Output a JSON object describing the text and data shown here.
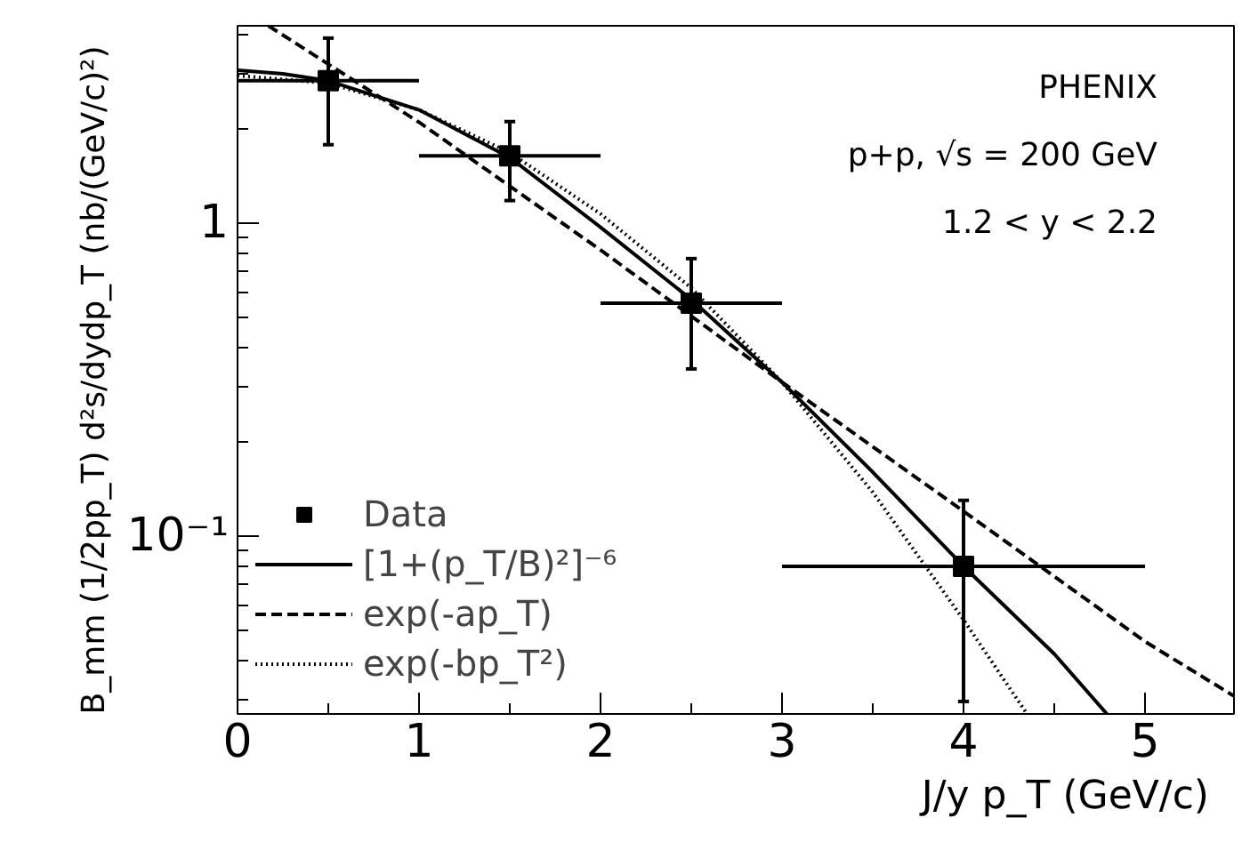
{
  "chart_data": {
    "type": "line",
    "xlabel": "J/y  p_T  (GeV/c)",
    "ylabel": "B_mm (1/2pp_T)  d²s/dydp_T  (nb/(GeV/c)²)",
    "annotations": [
      "PHENIX",
      "p+p, √s = 200 GeV",
      "1.2 < y < 2.2"
    ],
    "log": "y",
    "grid": false,
    "legend": "left",
    "xlim": [
      0,
      5.49
    ],
    "ylim": [
      0.027,
      4.27
    ],
    "xticks": [
      0,
      1,
      2,
      3,
      4,
      5,
      {
        "value": 0.5,
        "label": null
      },
      {
        "value": 1.5,
        "label": null
      },
      {
        "value": 2.5,
        "label": null
      },
      {
        "value": 3.5,
        "label": null
      },
      {
        "value": 4.5,
        "label": null
      }
    ],
    "yticks": [
      {
        "value": 1,
        "label": "1"
      },
      {
        "value": 0.1,
        "label": "10⁻¹"
      },
      {
        "value": 0.03,
        "label": null
      },
      {
        "value": 0.04,
        "label": null
      },
      {
        "value": 0.05,
        "label": null
      },
      {
        "value": 0.06,
        "label": null
      },
      {
        "value": 0.07,
        "label": null
      },
      {
        "value": 0.08,
        "label": null
      },
      {
        "value": 0.09,
        "label": null
      },
      {
        "value": 0.2,
        "label": null
      },
      {
        "value": 0.3,
        "label": null
      },
      {
        "value": 0.4,
        "label": null
      },
      {
        "value": 0.5,
        "label": null
      },
      {
        "value": 0.6,
        "label": null
      },
      {
        "value": 0.7,
        "label": null
      },
      {
        "value": 0.8,
        "label": null
      },
      {
        "value": 0.9,
        "label": null
      },
      {
        "value": 2,
        "label": null
      },
      {
        "value": 3,
        "label": null
      },
      {
        "value": 4,
        "label": null
      }
    ],
    "series": [
      {
        "name": "Data",
        "type": "scatter",
        "marker": "square",
        "color": "#000000",
        "x": [
          0.5,
          1.5,
          2.5,
          4
        ],
        "values": [
          2.85,
          1.64,
          0.555,
          0.08
        ],
        "errors": [
          [
            1.78,
            3.9
          ],
          [
            1.18,
            2.11
          ],
          [
            0.342,
            0.77
          ],
          [
            0.0296,
            0.13
          ]
        ],
        "xerrors": [
          [
            0,
            1
          ],
          [
            1,
            2
          ],
          [
            2,
            3
          ],
          [
            3,
            5
          ]
        ]
      },
      {
        "name": "[1+(p_T/B)²]⁻⁶",
        "line_style": "solid",
        "color": "#000000",
        "x": [
          0,
          0.25,
          0.5,
          1,
          1.5,
          2,
          2.5,
          3,
          3.5,
          4,
          4.5,
          4.79
        ],
        "values": [
          3.08,
          3.0,
          2.85,
          2.3,
          1.62,
          0.97,
          0.57,
          0.31,
          0.16,
          0.08,
          0.042,
          0.027
        ]
      },
      {
        "name": "exp(-ap_T)",
        "line_style": "dashed",
        "color": "#000000",
        "x": [
          0.17,
          1,
          2,
          3,
          4,
          5,
          5.49
        ],
        "values": [
          4.27,
          2.1,
          0.82,
          0.31,
          0.12,
          0.046,
          0.0308
        ]
      },
      {
        "name": "exp(-bp_T²)",
        "line_style": "dotted",
        "color": "#000000",
        "x": [
          0,
          0.5,
          1,
          1.5,
          2,
          2.5,
          3,
          3.5,
          4,
          4.35
        ],
        "values": [
          2.96,
          2.8,
          2.3,
          1.68,
          1.07,
          0.62,
          0.31,
          0.138,
          0.054,
          0.027
        ]
      }
    ]
  }
}
